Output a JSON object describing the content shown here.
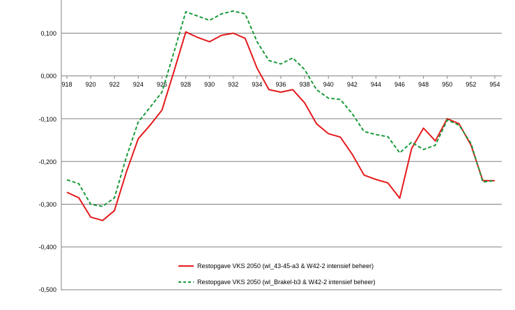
{
  "chart_data": {
    "type": "line",
    "title": "",
    "xlabel": "",
    "ylabel": "",
    "x": [
      918,
      919,
      920,
      921,
      922,
      923,
      924,
      925,
      926,
      927,
      928,
      929,
      930,
      931,
      932,
      933,
      934,
      935,
      936,
      937,
      938,
      939,
      940,
      941,
      942,
      943,
      944,
      945,
      946,
      947,
      948,
      949,
      950,
      951,
      952,
      953,
      954
    ],
    "x_ticks": [
      "918",
      "920",
      "922",
      "924",
      "926",
      "928",
      "930",
      "932",
      "934",
      "936",
      "938",
      "940",
      "942",
      "944",
      "946",
      "948",
      "950",
      "952",
      "954"
    ],
    "y_ticks": [
      "0,100",
      "0,000",
      "-0,100",
      "-0,200",
      "-0,300",
      "-0,400",
      "-0,500"
    ],
    "ylim": [
      -0.5,
      0.15
    ],
    "xlim": [
      918,
      954
    ],
    "grid": "horizontal",
    "legend_position": "bottom-center",
    "series": [
      {
        "name": "Restopgave VKS 2050 (wl_43-45-a3 & W42-2 intensief beheer)",
        "color": "#e41a1c",
        "style": "solid",
        "values": [
          -0.272,
          -0.285,
          -0.33,
          -0.338,
          -0.315,
          -0.225,
          -0.147,
          -0.115,
          -0.08,
          0.01,
          0.103,
          0.09,
          0.08,
          0.095,
          0.1,
          0.088,
          0.018,
          -0.032,
          -0.038,
          -0.032,
          -0.063,
          -0.112,
          -0.135,
          -0.143,
          -0.183,
          -0.232,
          -0.242,
          -0.25,
          -0.286,
          -0.17,
          -0.122,
          -0.152,
          -0.1,
          -0.112,
          -0.162,
          -0.245,
          -0.245
        ]
      },
      {
        "name": "Restopgave VKS 2050 (wl_Brakel-b3 & W42-2 intensief beheer)",
        "color": "#1a9a3a",
        "style": "dashed",
        "values": [
          -0.243,
          -0.252,
          -0.3,
          -0.305,
          -0.285,
          -0.19,
          -0.108,
          -0.073,
          -0.038,
          0.055,
          0.15,
          0.14,
          0.13,
          0.145,
          0.152,
          0.145,
          0.08,
          0.036,
          0.028,
          0.042,
          0.015,
          -0.032,
          -0.052,
          -0.055,
          -0.088,
          -0.13,
          -0.137,
          -0.142,
          -0.18,
          -0.155,
          -0.172,
          -0.162,
          -0.103,
          -0.115,
          -0.158,
          -0.248,
          -0.245
        ]
      }
    ]
  }
}
